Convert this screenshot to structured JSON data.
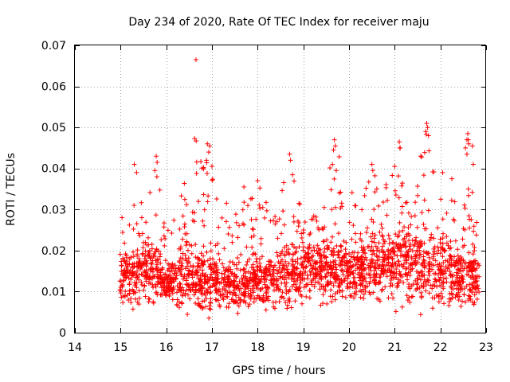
{
  "chart_data": {
    "type": "scatter",
    "title": "Day 234 of 2020, Rate Of TEC Index for receiver maju",
    "xlabel": "GPS time / hours",
    "ylabel": "ROTI / TECUs",
    "xlim": [
      14,
      23
    ],
    "ylim": [
      0,
      0.07
    ],
    "xticks": [
      14,
      15,
      16,
      17,
      18,
      19,
      20,
      21,
      22,
      23
    ],
    "xtick_labels": [
      "14",
      "15",
      "16",
      "17",
      "18",
      "19",
      "20",
      "21",
      "22",
      "23"
    ],
    "yticks": [
      0,
      0.01,
      0.02,
      0.03,
      0.04,
      0.05,
      0.06,
      0.07
    ],
    "ytick_labels": [
      "0",
      "0.01",
      "0.02",
      "0.03",
      "0.04",
      "0.05",
      "0.06",
      "0.07"
    ],
    "grid": true,
    "marker": "+",
    "series_color": "#ff0000",
    "data_range": {
      "x_min": 14.98,
      "x_max": 22.85
    },
    "envelope": [
      {
        "x": 15.0,
        "y_lo": 0.004,
        "y_hi": 0.028
      },
      {
        "x": 15.3,
        "y_lo": 0.004,
        "y_hi": 0.041
      },
      {
        "x": 15.5,
        "y_lo": 0.006,
        "y_hi": 0.036
      },
      {
        "x": 15.8,
        "y_lo": 0.005,
        "y_hi": 0.043
      },
      {
        "x": 16.0,
        "y_lo": 0.007,
        "y_hi": 0.024
      },
      {
        "x": 16.3,
        "y_lo": 0.002,
        "y_hi": 0.033
      },
      {
        "x": 16.6,
        "y_lo": 0.003,
        "y_hi": 0.047
      },
      {
        "x": 16.9,
        "y_lo": 0.003,
        "y_hi": 0.046
      },
      {
        "x": 17.2,
        "y_lo": 0.004,
        "y_hi": 0.035
      },
      {
        "x": 17.5,
        "y_lo": 0.004,
        "y_hi": 0.03
      },
      {
        "x": 17.8,
        "y_lo": 0.004,
        "y_hi": 0.036
      },
      {
        "x": 18.1,
        "y_lo": 0.003,
        "y_hi": 0.037
      },
      {
        "x": 18.4,
        "y_lo": 0.003,
        "y_hi": 0.03
      },
      {
        "x": 18.7,
        "y_lo": 0.003,
        "y_hi": 0.043
      },
      {
        "x": 19.0,
        "y_lo": 0.004,
        "y_hi": 0.03
      },
      {
        "x": 19.3,
        "y_lo": 0.005,
        "y_hi": 0.032
      },
      {
        "x": 19.7,
        "y_lo": 0.005,
        "y_hi": 0.047
      },
      {
        "x": 20.0,
        "y_lo": 0.005,
        "y_hi": 0.034
      },
      {
        "x": 20.3,
        "y_lo": 0.004,
        "y_hi": 0.037
      },
      {
        "x": 20.6,
        "y_lo": 0.004,
        "y_hi": 0.041
      },
      {
        "x": 20.9,
        "y_lo": 0.005,
        "y_hi": 0.036
      },
      {
        "x": 21.1,
        "y_lo": 0.004,
        "y_hi": 0.046
      },
      {
        "x": 21.4,
        "y_lo": 0.003,
        "y_hi": 0.032
      },
      {
        "x": 21.7,
        "y_lo": 0.004,
        "y_hi": 0.051
      },
      {
        "x": 22.0,
        "y_lo": 0.004,
        "y_hi": 0.035
      },
      {
        "x": 22.3,
        "y_lo": 0.004,
        "y_hi": 0.034
      },
      {
        "x": 22.6,
        "y_lo": 0.004,
        "y_hi": 0.048
      },
      {
        "x": 22.85,
        "y_lo": 0.005,
        "y_hi": 0.03
      }
    ],
    "median_profile": [
      {
        "x": 15.0,
        "y": 0.012
      },
      {
        "x": 15.5,
        "y": 0.016
      },
      {
        "x": 16.0,
        "y": 0.012
      },
      {
        "x": 16.5,
        "y": 0.013
      },
      {
        "x": 17.0,
        "y": 0.012
      },
      {
        "x": 17.5,
        "y": 0.011
      },
      {
        "x": 18.0,
        "y": 0.012
      },
      {
        "x": 18.5,
        "y": 0.013
      },
      {
        "x": 19.0,
        "y": 0.015
      },
      {
        "x": 19.5,
        "y": 0.016
      },
      {
        "x": 20.0,
        "y": 0.014
      },
      {
        "x": 20.5,
        "y": 0.016
      },
      {
        "x": 21.0,
        "y": 0.016
      },
      {
        "x": 21.5,
        "y": 0.016
      },
      {
        "x": 22.0,
        "y": 0.015
      },
      {
        "x": 22.5,
        "y": 0.014
      },
      {
        "x": 22.85,
        "y": 0.013
      }
    ],
    "outliers": [
      {
        "x": 16.65,
        "y": 0.0665
      },
      {
        "x": 16.62,
        "y": 0.0473
      },
      {
        "x": 16.9,
        "y": 0.046
      },
      {
        "x": 16.95,
        "y": 0.0455
      },
      {
        "x": 16.93,
        "y": 0.044
      },
      {
        "x": 16.88,
        "y": 0.042
      },
      {
        "x": 15.78,
        "y": 0.043
      },
      {
        "x": 15.8,
        "y": 0.0415
      },
      {
        "x": 15.75,
        "y": 0.0395
      },
      {
        "x": 15.3,
        "y": 0.041
      },
      {
        "x": 15.35,
        "y": 0.039
      },
      {
        "x": 17.7,
        "y": 0.0355
      },
      {
        "x": 18.0,
        "y": 0.037
      },
      {
        "x": 18.7,
        "y": 0.0435
      },
      {
        "x": 18.72,
        "y": 0.042
      },
      {
        "x": 19.68,
        "y": 0.047
      },
      {
        "x": 19.7,
        "y": 0.0455
      },
      {
        "x": 19.66,
        "y": 0.0445
      },
      {
        "x": 19.72,
        "y": 0.0395
      },
      {
        "x": 20.5,
        "y": 0.041
      },
      {
        "x": 20.52,
        "y": 0.0395
      },
      {
        "x": 21.1,
        "y": 0.0465
      },
      {
        "x": 21.12,
        "y": 0.045
      },
      {
        "x": 21.0,
        "y": 0.0405
      },
      {
        "x": 21.7,
        "y": 0.051
      },
      {
        "x": 21.72,
        "y": 0.05
      },
      {
        "x": 21.68,
        "y": 0.049
      },
      {
        "x": 21.74,
        "y": 0.048
      },
      {
        "x": 21.75,
        "y": 0.0443
      },
      {
        "x": 21.57,
        "y": 0.043
      },
      {
        "x": 22.05,
        "y": 0.039
      },
      {
        "x": 22.25,
        "y": 0.0375
      },
      {
        "x": 22.6,
        "y": 0.0485
      },
      {
        "x": 22.58,
        "y": 0.047
      },
      {
        "x": 22.62,
        "y": 0.046
      },
      {
        "x": 22.55,
        "y": 0.045
      },
      {
        "x": 22.7,
        "y": 0.0455
      },
      {
        "x": 22.72,
        "y": 0.041
      }
    ]
  }
}
